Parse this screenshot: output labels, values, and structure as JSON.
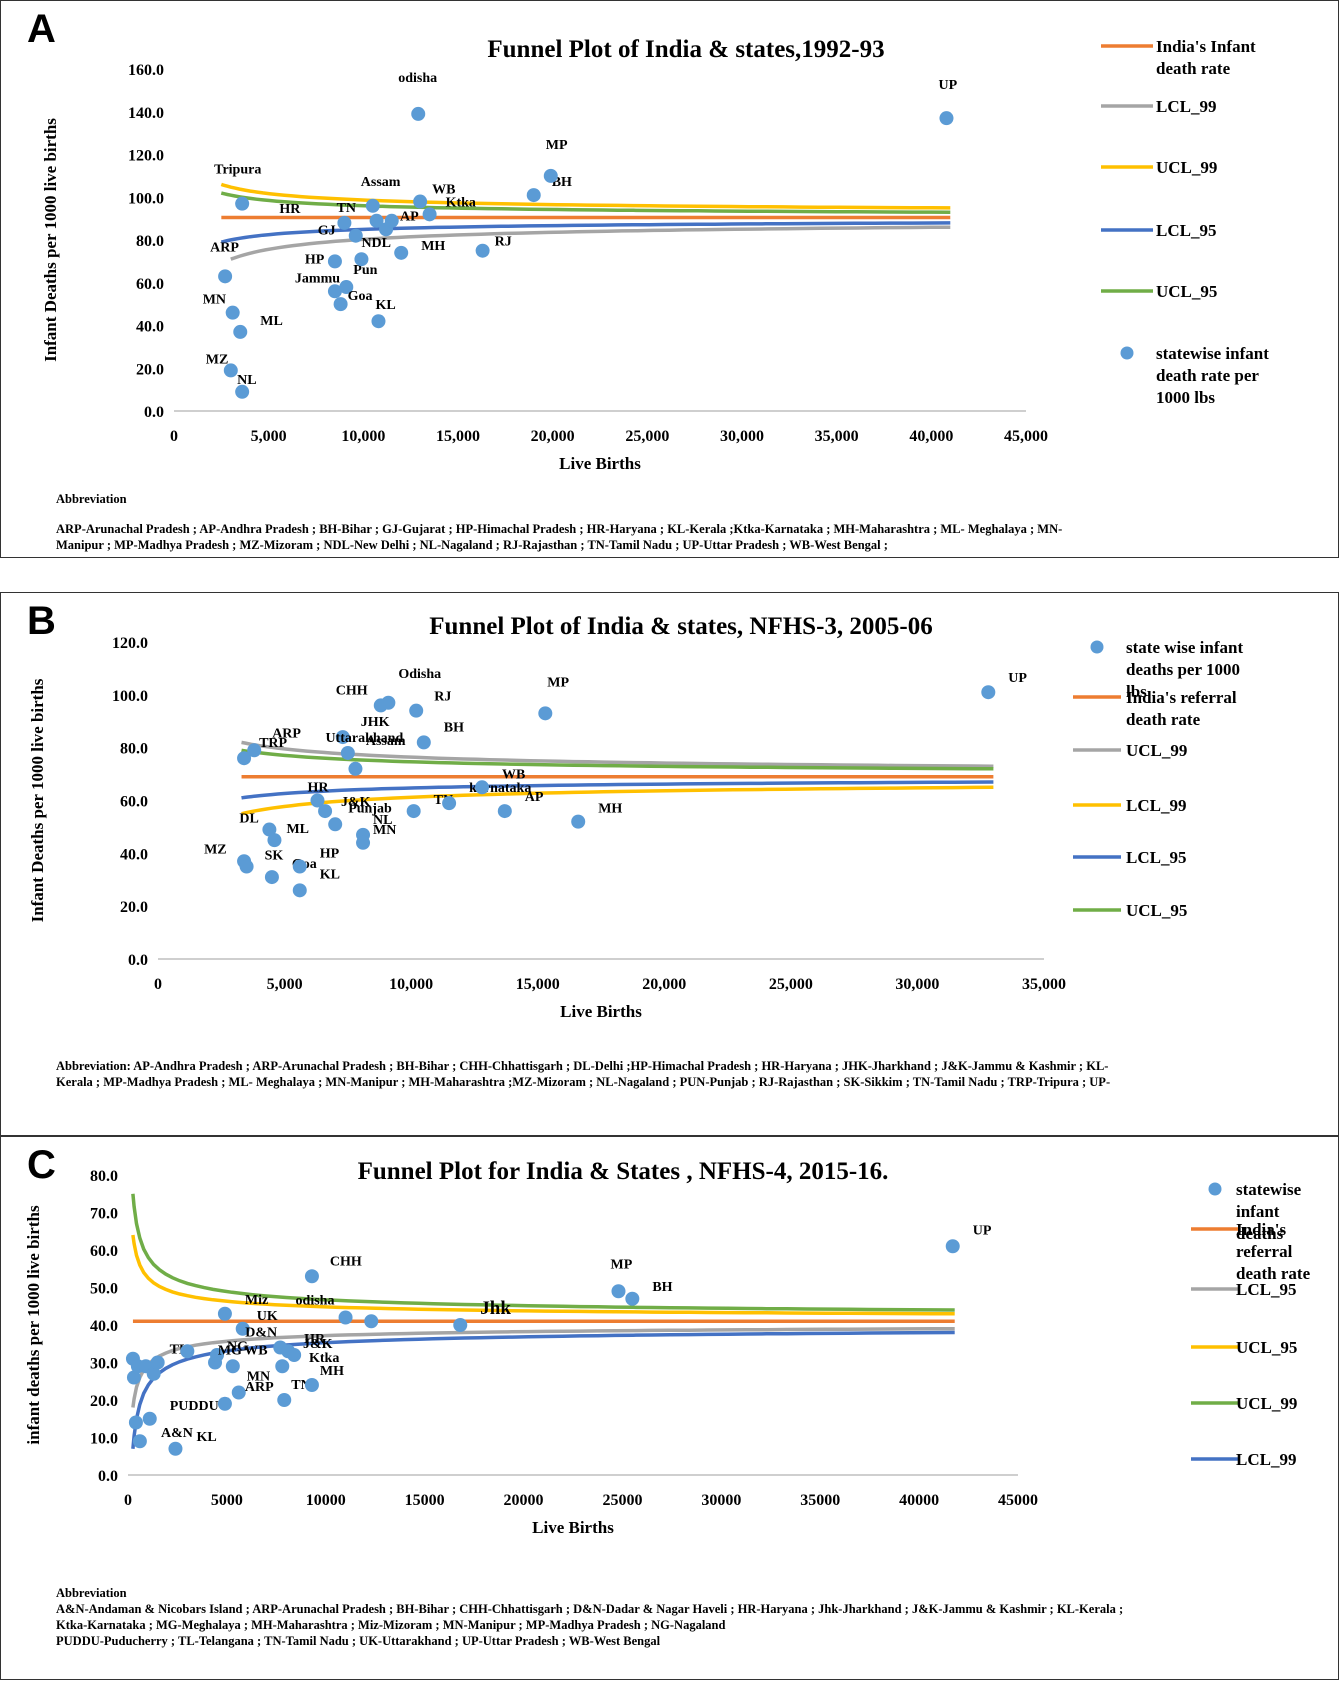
{
  "chart_data": [
    {
      "panel": "A",
      "type": "scatter",
      "title": "Funnel Plot of India & states,1992-93",
      "xlabel": "Live Births",
      "ylabel": "Infant Deaths per 1000 live births",
      "xlim": [
        0,
        45000
      ],
      "ylim": [
        0,
        160
      ],
      "x_ticks": [
        "0",
        "5,000",
        "10,000",
        "15,000",
        "20,000",
        "25,000",
        "30,000",
        "35,000",
        "40,000",
        "45,000"
      ],
      "y_ticks": [
        "0.0",
        "20.0",
        "40.0",
        "60.0",
        "80.0",
        "100.0",
        "120.0",
        "140.0",
        "160.0"
      ],
      "legend": [
        {
          "label": "India's Infant death rate",
          "kind": "line",
          "color": "#ED7D31"
        },
        {
          "label": "LCL_99",
          "kind": "line",
          "color": "#A5A5A5"
        },
        {
          "label": "UCL_99",
          "kind": "line",
          "color": "#FFC000"
        },
        {
          "label": "LCL_95",
          "kind": "line",
          "color": "#4472C4"
        },
        {
          "label": "UCL_95",
          "kind": "line",
          "color": "#70AD47"
        },
        {
          "label": "statewise infant death rate per 1000 lbs",
          "kind": "marker",
          "color": "#5B9BD5"
        }
      ],
      "reference_rate": 90.5,
      "limits": {
        "LCL_99": [
          3000,
          71,
          41000,
          86
        ],
        "UCL_99": [
          2500,
          106,
          41000,
          95
        ],
        "LCL_95": [
          2500,
          79,
          41000,
          88
        ],
        "UCL_95": [
          2500,
          102,
          41000,
          93
        ]
      },
      "points": [
        {
          "x": 2700,
          "y": 63,
          "label": "ARP"
        },
        {
          "x": 3100,
          "y": 46,
          "label": "MN"
        },
        {
          "x": 3500,
          "y": 37,
          "label": "ML"
        },
        {
          "x": 3000,
          "y": 19,
          "label": "MZ"
        },
        {
          "x": 3600,
          "y": 9,
          "label": "NL"
        },
        {
          "x": 3600,
          "y": 97,
          "label": "Tripura"
        },
        {
          "x": 8500,
          "y": 70,
          "label": "HP"
        },
        {
          "x": 8500,
          "y": 56,
          "label": "Jammu"
        },
        {
          "x": 9100,
          "y": 58,
          "label": "Pun"
        },
        {
          "x": 8800,
          "y": 50,
          "label": "Goa"
        },
        {
          "x": 9000,
          "y": 88,
          "label": "HR"
        },
        {
          "x": 9600,
          "y": 82,
          "label": "GJ"
        },
        {
          "x": 9900,
          "y": 71,
          "label": "NDL"
        },
        {
          "x": 10500,
          "y": 96,
          "label": "Assam"
        },
        {
          "x": 10700,
          "y": 89,
          "label": "TN"
        },
        {
          "x": 11200,
          "y": 85,
          "label": "AP"
        },
        {
          "x": 11500,
          "y": 89,
          "label": ""
        },
        {
          "x": 12000,
          "y": 74,
          "label": "MH"
        },
        {
          "x": 10800,
          "y": 42,
          "label": "KL"
        },
        {
          "x": 12900,
          "y": 139,
          "label": "odisha"
        },
        {
          "x": 13000,
          "y": 98,
          "label": "WB"
        },
        {
          "x": 13500,
          "y": 92,
          "label": "Ktka"
        },
        {
          "x": 16300,
          "y": 75,
          "label": "RJ"
        },
        {
          "x": 19000,
          "y": 101,
          "label": "BH"
        },
        {
          "x": 19900,
          "y": 110,
          "label": "MP"
        },
        {
          "x": 40800,
          "y": 137,
          "label": "UP"
        }
      ],
      "abbreviation_heading": "Abbreviation",
      "abbreviation_lines": [
        "ARP-Arunachal Pradesh ; AP-Andhra Pradesh ; BH-Bihar ; GJ-Gujarat ; HP-Himachal Pradesh ; HR-Haryana ; KL-Kerala ;Ktka-Karnataka ; MH-Maharashtra ; ML- Meghalaya ; MN-",
        "Manipur ; MP-Madhya Pradesh ; MZ-Mizoram ; NDL-New Delhi ; NL-Nagaland ; RJ-Rajasthan ; TN-Tamil Nadu ; UP-Uttar Pradesh ; WB-West Bengal ;"
      ]
    },
    {
      "panel": "B",
      "type": "scatter",
      "title": "Funnel Plot of India & states, NFHS-3, 2005-06",
      "xlabel": "Live Births",
      "ylabel": "Infant Deaths per 1000 live births",
      "xlim": [
        0,
        35000
      ],
      "ylim": [
        0,
        120
      ],
      "x_ticks": [
        "0",
        "5,000",
        "10,000",
        "15,000",
        "20,000",
        "25,000",
        "30,000",
        "35,000"
      ],
      "y_ticks": [
        "0.0",
        "20.0",
        "40.0",
        "60.0",
        "80.0",
        "100.0",
        "120.0"
      ],
      "legend": [
        {
          "label": "state wise infant deaths per 1000 lbs",
          "kind": "marker",
          "color": "#5B9BD5"
        },
        {
          "label": "India's referral death rate",
          "kind": "line",
          "color": "#ED7D31"
        },
        {
          "label": "UCL_99",
          "kind": "line",
          "color": "#A5A5A5"
        },
        {
          "label": "LCL_99",
          "kind": "line",
          "color": "#FFC000"
        },
        {
          "label": "LCL_95",
          "kind": "line",
          "color": "#4472C4"
        },
        {
          "label": "UCL_95",
          "kind": "line",
          "color": "#70AD47"
        }
      ],
      "reference_rate": 69,
      "limits": {
        "UCL_99": [
          3300,
          82,
          33000,
          73
        ],
        "LCL_99": [
          3300,
          55,
          33000,
          65
        ],
        "LCL_95": [
          3300,
          61,
          33000,
          67
        ],
        "UCL_95": [
          3300,
          79,
          33000,
          72
        ]
      },
      "points": [
        {
          "x": 3400,
          "y": 76,
          "label": "TRP"
        },
        {
          "x": 3800,
          "y": 79,
          "label": "ARP"
        },
        {
          "x": 3400,
          "y": 37,
          "label": "MZ"
        },
        {
          "x": 3500,
          "y": 35,
          "label": "SK"
        },
        {
          "x": 4500,
          "y": 31,
          "label": "Goa"
        },
        {
          "x": 4400,
          "y": 49,
          "label": "DL"
        },
        {
          "x": 4600,
          "y": 45,
          "label": "ML"
        },
        {
          "x": 5600,
          "y": 26,
          "label": "KL"
        },
        {
          "x": 5600,
          "y": 35,
          "label": "HP"
        },
        {
          "x": 6300,
          "y": 60,
          "label": "HR"
        },
        {
          "x": 6600,
          "y": 56,
          "label": ""
        },
        {
          "x": 7000,
          "y": 51,
          "label": "Punjab"
        },
        {
          "x": 7300,
          "y": 84,
          "label": "JHK"
        },
        {
          "x": 7500,
          "y": 78,
          "label": "Assam"
        },
        {
          "x": 7800,
          "y": 72,
          "label": "Uttarakhand"
        },
        {
          "x": 8100,
          "y": 47,
          "label": "NL"
        },
        {
          "x": 8100,
          "y": 44,
          "label": "MN"
        },
        {
          "x": 8800,
          "y": 96,
          "label": "CHH"
        },
        {
          "x": 9100,
          "y": 97,
          "label": "Odisha"
        },
        {
          "x": 10200,
          "y": 94,
          "label": "RJ"
        },
        {
          "x": 10100,
          "y": 56,
          "label": "TN"
        },
        {
          "x": 10500,
          "y": 82,
          "label": "BH"
        },
        {
          "x": 11500,
          "y": 59,
          "label": "karnataka"
        },
        {
          "x": 12800,
          "y": 65,
          "label": "WB"
        },
        {
          "x": 13700,
          "y": 56,
          "label": "AP"
        },
        {
          "x": 15300,
          "y": 93,
          "label": "MP"
        },
        {
          "x": 16600,
          "y": 52,
          "label": "MH"
        },
        {
          "x": 32800,
          "y": 101,
          "label": "UP"
        }
      ],
      "annotations": [
        "J&K"
      ],
      "abbreviation_heading": "",
      "abbreviation_lines": [
        "Abbreviation: AP-Andhra Pradesh ; ARP-Arunachal Pradesh ; BH-Bihar ; CHH-Chhattisgarh ; DL-Delhi ;HP-Himachal Pradesh ; HR-Haryana ; JHK-Jharkhand ; J&K-Jammu & Kashmir ; KL-",
        "Kerala ; MP-Madhya Pradesh ; ML- Meghalaya ; MN-Manipur ; MH-Maharashtra ;MZ-Mizoram ; NL-Nagaland ; PUN-Punjab ; RJ-Rajasthan ; SK-Sikkim ; TN-Tamil Nadu ; TRP-Tripura ; UP-"
      ]
    },
    {
      "panel": "C",
      "type": "scatter",
      "title": "Funnel Plot for India & States , NFHS-4, 2015-16.",
      "xlabel": "Live Births",
      "ylabel": "infant deaths per 1000 live births",
      "xlim": [
        0,
        45000
      ],
      "ylim": [
        0,
        80
      ],
      "x_ticks": [
        "0",
        "5000",
        "10000",
        "15000",
        "20000",
        "25000",
        "30000",
        "35000",
        "40000",
        "45000"
      ],
      "y_ticks": [
        "0.0",
        "10.0",
        "20.0",
        "30.0",
        "40.0",
        "50.0",
        "60.0",
        "70.0",
        "80.0"
      ],
      "legend": [
        {
          "label": "statewise infant deaths",
          "kind": "marker",
          "color": "#5B9BD5"
        },
        {
          "label": "India's referral death rate",
          "kind": "line",
          "color": "#ED7D31"
        },
        {
          "label": "LCL_95",
          "kind": "line",
          "color": "#A5A5A5"
        },
        {
          "label": "UCL_95",
          "kind": "line",
          "color": "#FFC000"
        },
        {
          "label": "UCL_99",
          "kind": "line",
          "color": "#70AD47"
        },
        {
          "label": "LCL_99",
          "kind": "line",
          "color": "#4472C4"
        }
      ],
      "reference_rate": 41,
      "limits": {
        "UCL_99": [
          250,
          75,
          41800,
          44
        ],
        "UCL_95": [
          250,
          64,
          41800,
          43
        ],
        "LCL_95": [
          250,
          18,
          41800,
          39
        ],
        "LCL_99": [
          250,
          7,
          41800,
          38
        ]
      },
      "points": [
        {
          "x": 250,
          "y": 31,
          "label": ""
        },
        {
          "x": 300,
          "y": 26,
          "label": ""
        },
        {
          "x": 400,
          "y": 14,
          "label": ""
        },
        {
          "x": 600,
          "y": 9,
          "label": ""
        },
        {
          "x": 500,
          "y": 29,
          "label": ""
        },
        {
          "x": 900,
          "y": 29,
          "label": ""
        },
        {
          "x": 1300,
          "y": 27,
          "label": ""
        },
        {
          "x": 1500,
          "y": 30,
          "label": "TL"
        },
        {
          "x": 1100,
          "y": 15,
          "label": "PUDDU"
        },
        {
          "x": 2400,
          "y": 7,
          "label": "KL"
        },
        {
          "x": 3000,
          "y": 33,
          "label": ""
        },
        {
          "x": 4400,
          "y": 30,
          "label": "NG"
        },
        {
          "x": 4500,
          "y": 32,
          "label": ""
        },
        {
          "x": 5300,
          "y": 29,
          "label": "MG"
        },
        {
          "x": 5600,
          "y": 22,
          "label": "MN"
        },
        {
          "x": 4900,
          "y": 19,
          "label": "ARP"
        },
        {
          "x": 4900,
          "y": 43,
          "label": "Miz"
        },
        {
          "x": 5800,
          "y": 39,
          "label": "UK"
        },
        {
          "x": 7700,
          "y": 34,
          "label": "D&N"
        },
        {
          "x": 7800,
          "y": 29,
          "label": "WB"
        },
        {
          "x": 8100,
          "y": 33,
          "label": ""
        },
        {
          "x": 8400,
          "y": 32,
          "label": "HR"
        },
        {
          "x": 7900,
          "y": 20,
          "label": "TN"
        },
        {
          "x": 9300,
          "y": 24,
          "label": "MH"
        },
        {
          "x": 9300,
          "y": 53,
          "label": "CHH"
        },
        {
          "x": 11000,
          "y": 42,
          "label": "odisha"
        },
        {
          "x": 12300,
          "y": 41,
          "label": ""
        },
        {
          "x": 16800,
          "y": 40,
          "label": "Jhk"
        },
        {
          "x": 24800,
          "y": 49,
          "label": "MP"
        },
        {
          "x": 25500,
          "y": 47,
          "label": "BH"
        },
        {
          "x": 41700,
          "y": 61,
          "label": "UP"
        }
      ],
      "annotations": [
        "J&K",
        "Ktka",
        "A&N"
      ],
      "abbreviation_heading": "Abbreviation",
      "abbreviation_lines": [
        "A&N-Andaman & Nicobars Island ; ARP-Arunachal Pradesh ; BH-Bihar ; CHH-Chhattisgarh ; D&N-Dadar & Nagar Haveli ; HR-Haryana ; Jhk-Jharkhand ; J&K-Jammu & Kashmir ; KL-Kerala ;",
        "Ktka-Karnataka ; MG-Meghalaya ; MH-Maharashtra ; Miz-Mizoram ; MN-Manipur ; MP-Madhya Pradesh ; NG-Nagaland",
        "PUDDU-Puducherry ; TL-Telangana ; TN-Tamil Nadu ; UK-Uttarakhand ; UP-Uttar Pradesh ; WB-West Bengal"
      ]
    }
  ]
}
